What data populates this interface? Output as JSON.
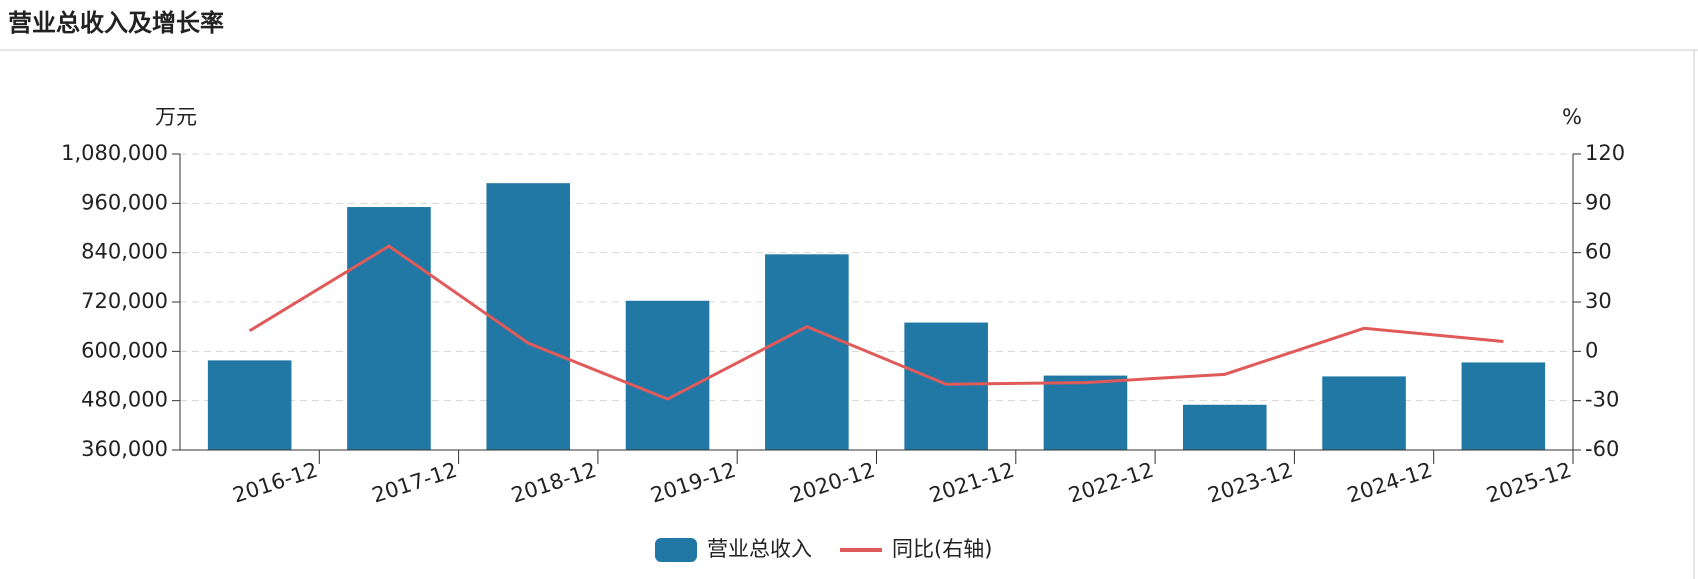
{
  "chart_data": {
    "type": "bar",
    "title": "营业总收入及增长率",
    "ylabel": "万元",
    "y2label": "%",
    "categories": [
      "2016-12",
      "2017-12",
      "2018-12",
      "2019-12",
      "2020-12",
      "2021-12",
      "2022-12",
      "2023-12",
      "2024-12",
      "2025-12"
    ],
    "series": [
      {
        "name": "营业总收入",
        "type": "bar",
        "color": "#2278a5",
        "values": [
          578000,
          951000,
          1009000,
          723000,
          836000,
          670000,
          541000,
          470000,
          539000,
          573000
        ]
      },
      {
        "name": "同比(右轴)",
        "type": "line",
        "axis": "y2",
        "color": "#e05a5a",
        "values": [
          12.5,
          64,
          5,
          -29,
          15,
          -20,
          -19,
          -14,
          14,
          6
        ]
      }
    ],
    "ylim": [
      360000,
      1080000
    ],
    "yticks": [
      {
        "value": 360000,
        "label": "360,000"
      },
      {
        "value": 480000,
        "label": "480,000"
      },
      {
        "value": 600000,
        "label": "600,000"
      },
      {
        "value": 720000,
        "label": "720,000"
      },
      {
        "value": 840000,
        "label": "840,000"
      },
      {
        "value": 960000,
        "label": "960,000"
      },
      {
        "value": 1080000,
        "label": "1,080,000"
      }
    ],
    "y2lim": [
      -60,
      120
    ],
    "y2ticks": [
      -60,
      -30,
      0,
      30,
      60,
      90,
      120
    ],
    "grid": true
  }
}
